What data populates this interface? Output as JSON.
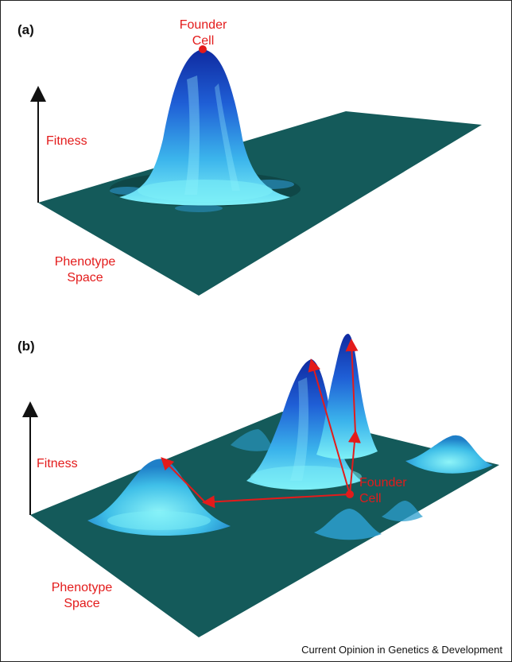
{
  "panel_a": {
    "label": "(a)",
    "founder_label_line1": "Founder",
    "founder_label_line2": "Cell",
    "axis_fitness": "Fitness",
    "axis_phenotype_line1": "Phenotype",
    "axis_phenotype_line2": "Space"
  },
  "panel_b": {
    "label": "(b)",
    "founder_label_line1": "Founder",
    "founder_label_line2": "Cell",
    "axis_fitness": "Fitness",
    "axis_phenotype_line1": "Phenotype",
    "axis_phenotype_line2": "Space"
  },
  "footer": "Current Opinion in Genetics & Development",
  "colors": {
    "plane": "#145a5a",
    "peak_dark": "#1d3fb8",
    "peak_light": "#5fe3f0",
    "annotation_red": "#e31b1b"
  }
}
